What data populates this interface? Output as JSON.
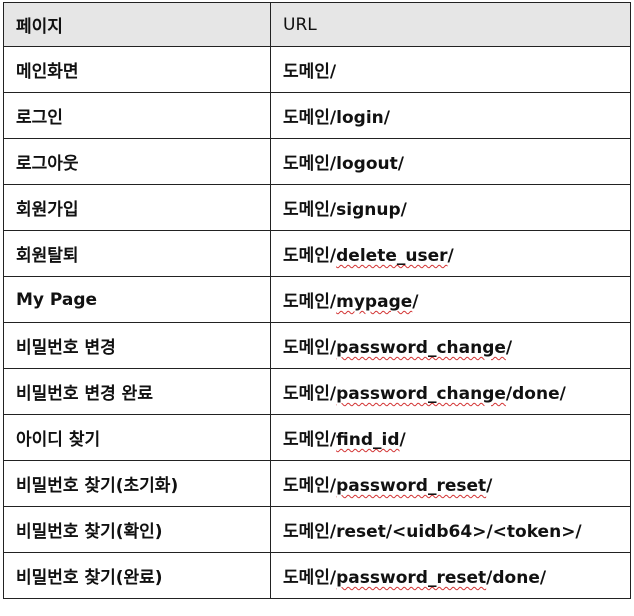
{
  "table": {
    "headers": {
      "page": "페이지",
      "url": "URL"
    },
    "rows": [
      {
        "page": "메인화면",
        "url_prefix": "도메인/",
        "url_marked": "",
        "url_suffix": ""
      },
      {
        "page": "로그인",
        "url_prefix": "도메인/",
        "url_marked": "",
        "url_suffix": "login/"
      },
      {
        "page": "로그아웃",
        "url_prefix": "도메인/",
        "url_marked": "",
        "url_suffix": "logout/"
      },
      {
        "page": "회원가입",
        "url_prefix": "도메인/",
        "url_marked": "",
        "url_suffix": "signup/"
      },
      {
        "page": "회원탈퇴",
        "url_prefix": "도메인/",
        "url_marked": "delete_user",
        "url_suffix": "/"
      },
      {
        "page": "My Page",
        "url_prefix": "도메인/",
        "url_marked": "mypage",
        "url_suffix": "/"
      },
      {
        "page": "비밀번호 변경",
        "url_prefix": "도메인/",
        "url_marked": "password_change",
        "url_suffix": "/"
      },
      {
        "page": "비밀번호 변경 완료",
        "url_prefix": "도메인/",
        "url_marked": "password_change",
        "url_suffix": "/done/"
      },
      {
        "page": "아이디 찾기",
        "url_prefix": "도메인/",
        "url_marked": "find_id",
        "url_suffix": "/"
      },
      {
        "page": "비밀번호 찾기(초기화)",
        "url_prefix": "도메인/",
        "url_marked": "password_reset",
        "url_suffix": "/"
      },
      {
        "page": "비밀번호 찾기(확인)",
        "url_prefix": "도메인/",
        "url_marked": "",
        "url_suffix": "reset/<uidb64>/<token>/"
      },
      {
        "page": "비밀번호 찾기(완료)",
        "url_prefix": "도메인/",
        "url_marked": "password_reset",
        "url_suffix": "/done/"
      }
    ]
  },
  "colors": {
    "header_background": "#e6e6e6",
    "border": "#222222",
    "spellcheck_underline": "#d23232"
  }
}
